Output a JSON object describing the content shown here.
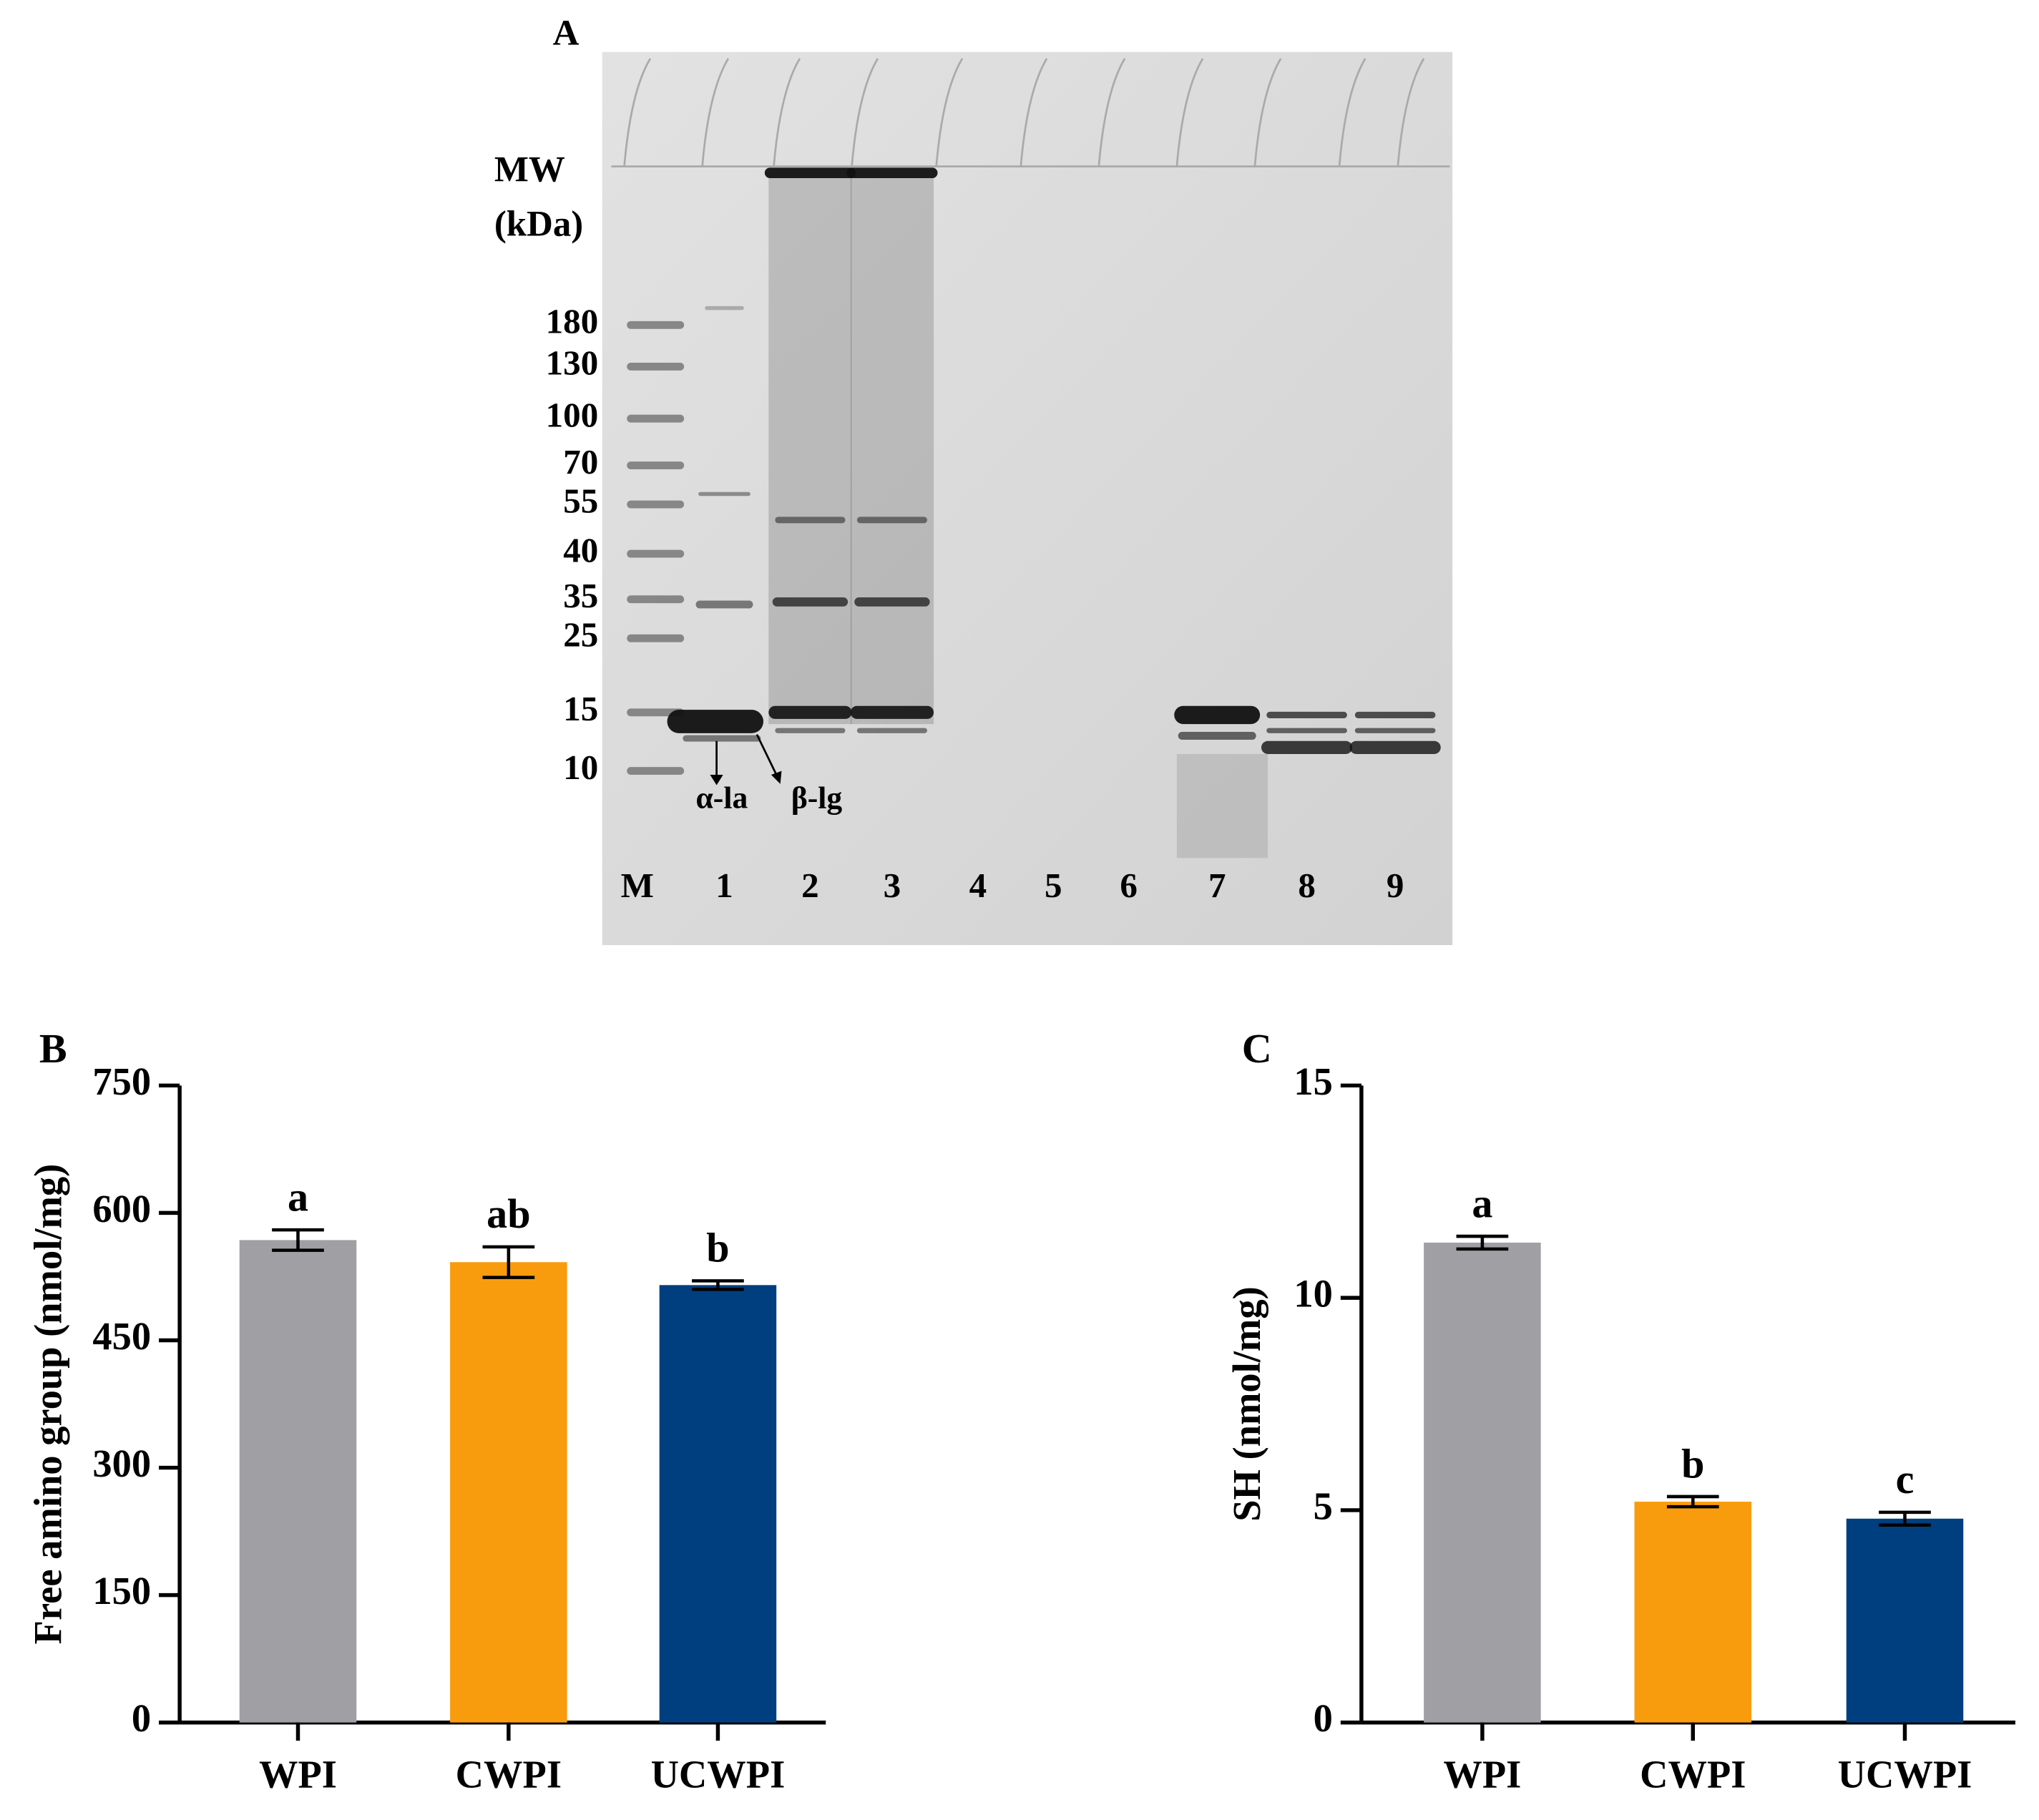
{
  "gel": {
    "panel_label": "A",
    "mw_title": [
      "MW",
      "(kDa)"
    ],
    "mw_labels": [
      "180",
      "130",
      "100",
      "70",
      "55",
      "40",
      "35",
      "25",
      "15",
      "10"
    ],
    "lanes": [
      "M",
      "1",
      "2",
      "3",
      "4",
      "5",
      "6",
      "7",
      "8",
      "9"
    ],
    "band_labels": [
      "α-la",
      "β-lg"
    ]
  },
  "chart_data": [
    {
      "type": "bar",
      "panel_label": "B",
      "y_label": "Free amino group (nmol/mg)",
      "categories": [
        "WPI",
        "CWPI",
        "UCWPI"
      ],
      "values": [
        568,
        542,
        515
      ],
      "errors": [
        12,
        18,
        5
      ],
      "annotations": [
        "a",
        "ab",
        "b"
      ],
      "colors": [
        "#a09fa4",
        "#f89c0e",
        "#003f7f"
      ],
      "ylim": [
        0,
        750
      ],
      "yticks": [
        0,
        150,
        300,
        450,
        600,
        750
      ]
    },
    {
      "type": "bar",
      "panel_label": "C",
      "y_label": "SH (nmol/mg)",
      "categories": [
        "WPI",
        "CWPI",
        "UCWPI"
      ],
      "values": [
        11.3,
        5.2,
        4.8
      ],
      "errors": [
        0.15,
        0.12,
        0.15
      ],
      "annotations": [
        "a",
        "b",
        "c"
      ],
      "colors": [
        "#a09fa4",
        "#f89c0e",
        "#003f7f"
      ],
      "ylim": [
        0,
        15
      ],
      "yticks": [
        0,
        5,
        10,
        15
      ]
    }
  ]
}
